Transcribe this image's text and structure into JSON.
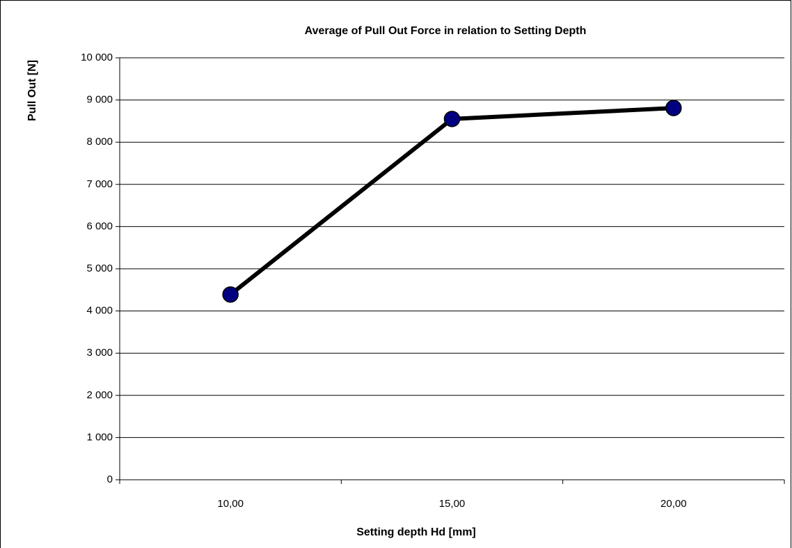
{
  "chart_data": {
    "type": "line",
    "title": "Average of Pull Out Force in relation to Setting Depth",
    "x_label": "Setting depth Hd [mm]",
    "y_label": "Pull Out [N]",
    "categories": [
      "10,00",
      "15,00",
      "20,00"
    ],
    "series": [
      {
        "name": "Pull Out",
        "color": "#000080",
        "values": [
          4390,
          8550,
          8810
        ]
      }
    ],
    "ylim": [
      0,
      10000
    ],
    "yticks": [
      0,
      {
        "value": 1000,
        "label": "1 000"
      },
      {
        "value": 2000,
        "label": "2 000"
      },
      {
        "value": 3000,
        "label": "3 000"
      },
      {
        "value": 4000,
        "label": "4 000"
      },
      {
        "value": 5000,
        "label": "5 000"
      },
      {
        "value": 6000,
        "label": "6 000"
      },
      {
        "value": 7000,
        "label": "7 000"
      },
      {
        "value": 8000,
        "label": "8 000"
      },
      {
        "value": 9000,
        "label": "9 000"
      },
      {
        "value": 10000,
        "label": "10 000"
      }
    ],
    "grid": true
  }
}
